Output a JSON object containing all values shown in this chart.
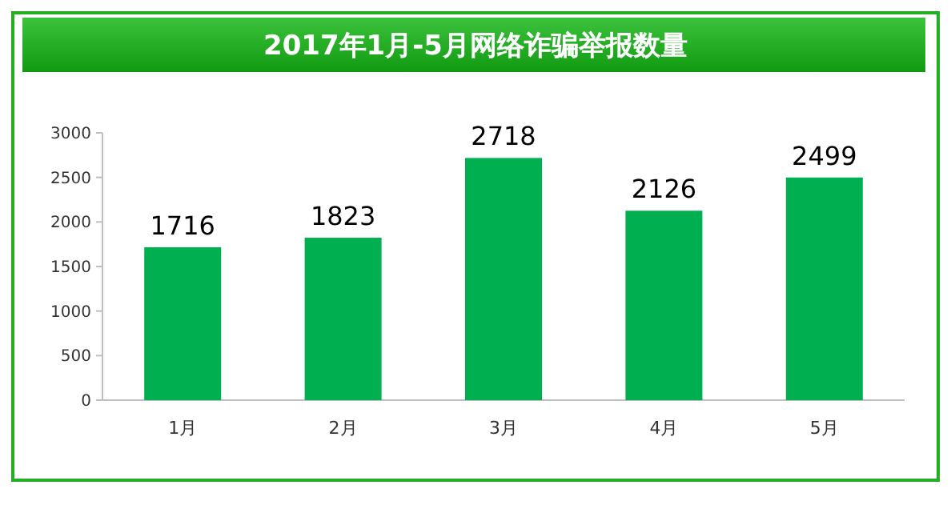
{
  "chart_data": {
    "type": "bar",
    "title": "2017年1月-5月网络诈骗举报数量",
    "categories": [
      "1月",
      "2月",
      "3月",
      "4月",
      "5月"
    ],
    "values": [
      1716,
      1823,
      2718,
      2126,
      2499
    ],
    "color": "#00b050",
    "ylim": [
      0,
      3000
    ],
    "yticks": [
      0,
      500,
      1000,
      1500,
      2000,
      2500,
      3000
    ],
    "data_labels": true
  }
}
